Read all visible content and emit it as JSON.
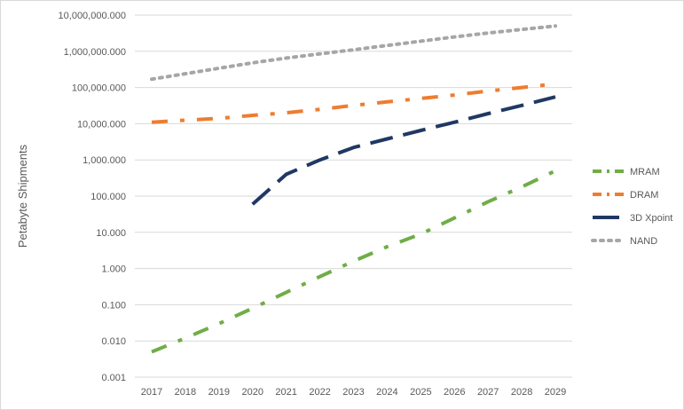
{
  "chart_data": {
    "type": "line",
    "ylabel": "Petabyte Shipments",
    "xlabel": "",
    "yscale": "log",
    "ylim": [
      0.001,
      10000000
    ],
    "yticks": [
      "0.001",
      "0.010",
      "0.100",
      "1.000",
      "10.000",
      "100.000",
      "1,000.000",
      "10,000.000",
      "100,000.000",
      "1,000,000.000",
      "10,000,000.000"
    ],
    "x": [
      "2017",
      "2018",
      "2019",
      "2020",
      "2021",
      "2022",
      "2023",
      "2024",
      "2025",
      "2026",
      "2027",
      "2028",
      "2029"
    ],
    "grid": "horizontal",
    "legend_position": "right",
    "series": [
      {
        "name": "MRAM",
        "color": "#70ad47",
        "dash": "dashdot",
        "values": [
          0.005,
          0.012,
          0.03,
          0.08,
          0.22,
          0.6,
          1.6,
          4,
          9,
          25,
          70,
          180,
          500
        ]
      },
      {
        "name": "DRAM",
        "color": "#ed7d31",
        "dash": "dashdot",
        "values": [
          11000,
          12500,
          14000,
          17000,
          20000,
          25000,
          32000,
          40000,
          50000,
          62000,
          80000,
          100000,
          125000
        ]
      },
      {
        "name": "3D Xpoint",
        "color": "#203864",
        "dash": "longdash",
        "values": [
          null,
          null,
          null,
          60,
          400,
          1000,
          2200,
          3800,
          6500,
          11000,
          19000,
          32000,
          55000
        ]
      },
      {
        "name": "NAND",
        "color": "#a6a6a6",
        "dash": "dot",
        "values": [
          170000,
          240000,
          340000,
          480000,
          650000,
          850000,
          1100000,
          1450000,
          1900000,
          2500000,
          3200000,
          4000000,
          5000000
        ]
      }
    ]
  }
}
